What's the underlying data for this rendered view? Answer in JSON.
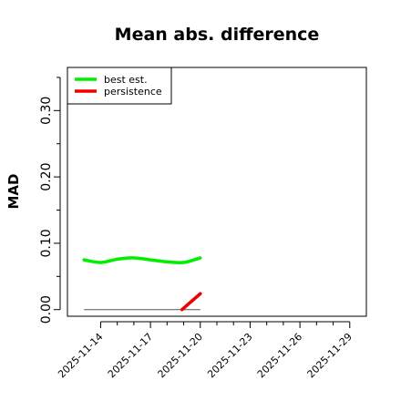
{
  "chart_data": {
    "type": "line",
    "title": "Mean abs. difference",
    "xlabel": "",
    "ylabel": "MAD",
    "xlim": [
      "2025-11-12",
      "2025-11-30"
    ],
    "ylim": [
      -0.01,
      0.365
    ],
    "y_ticks": [
      "0.00",
      "0.10",
      "0.20",
      "0.30"
    ],
    "y_tick_values": [
      0.0,
      0.1,
      0.2,
      0.3
    ],
    "y_minor_ticks": [
      0.05,
      0.15,
      0.25,
      0.35
    ],
    "x_ticks": [
      "2025-11-14",
      "2025-11-17",
      "2025-11-20",
      "2025-11-23",
      "2025-11-26",
      "2025-11-29"
    ],
    "x_minor_ticks": [
      "2025-11-15",
      "2025-11-16",
      "2025-11-18",
      "2025-11-19",
      "2025-11-21",
      "2025-11-22",
      "2025-11-24",
      "2025-11-25",
      "2025-11-27",
      "2025-11-28"
    ],
    "legend_position": "top-left",
    "grid": false,
    "series": [
      {
        "name": "best est.",
        "color": "#00ee00",
        "x": [
          "2025-11-13",
          "2025-11-14",
          "2025-11-15",
          "2025-11-16",
          "2025-11-17",
          "2025-11-18",
          "2025-11-19",
          "2025-11-20"
        ],
        "values": [
          0.075,
          0.071,
          0.076,
          0.078,
          0.075,
          0.072,
          0.071,
          0.078
        ]
      },
      {
        "name": "persistence",
        "color": "#ee0000",
        "x": [
          "2025-11-18.9",
          "2025-11-20"
        ],
        "values": [
          0.0,
          0.024
        ]
      }
    ],
    "baseline": {
      "x_start": "2025-11-13",
      "x_end": "2025-11-20",
      "value": 0.0,
      "color": "#555555"
    }
  }
}
